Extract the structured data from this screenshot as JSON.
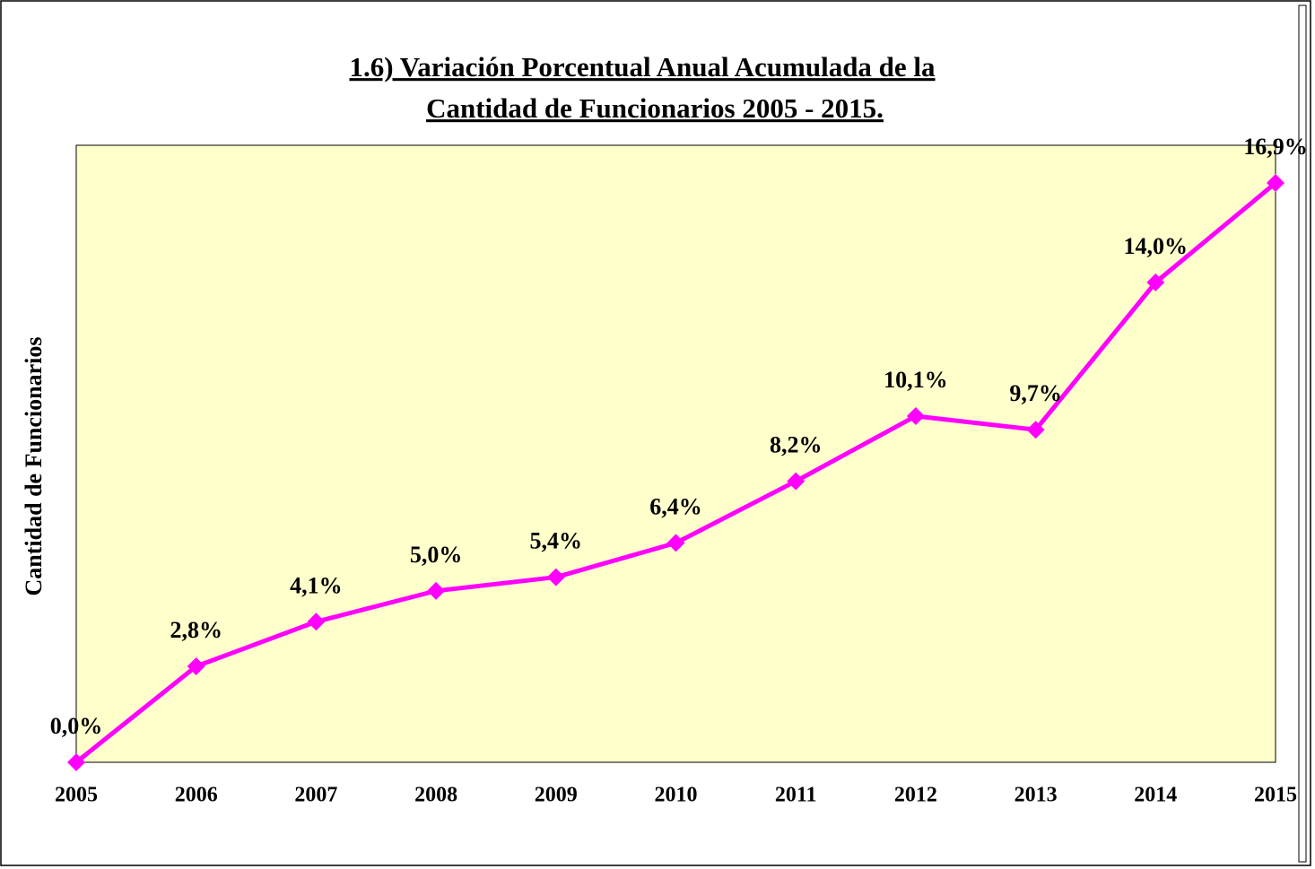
{
  "chart_data": {
    "type": "line",
    "title": [
      "1.6) Variación Porcentual Anual Acumulada de la ",
      "Cantidad de Funcionarios 2005 - 2015."
    ],
    "y_label": "Cantidad de Funcionarios",
    "categories": [
      "2005",
      "2006",
      "2007",
      "2008",
      "2009",
      "2010",
      "2011",
      "2012",
      "2013",
      "2014",
      "2015"
    ],
    "values": [
      0.0,
      2.8,
      4.1,
      5.0,
      5.4,
      6.4,
      8.2,
      10.1,
      9.7,
      14.0,
      16.9
    ],
    "value_labels": [
      "0,0%",
      "2,8%",
      "4,1%",
      "5,0%",
      "5,4%",
      "6,4%",
      "8,2%",
      "10,1%",
      "9,7%",
      "14,0%",
      "16,9%"
    ],
    "color": "#ff00ff",
    "plot_background": "#ffffcc",
    "ylim": [
      0,
      18
    ],
    "grid": false
  }
}
